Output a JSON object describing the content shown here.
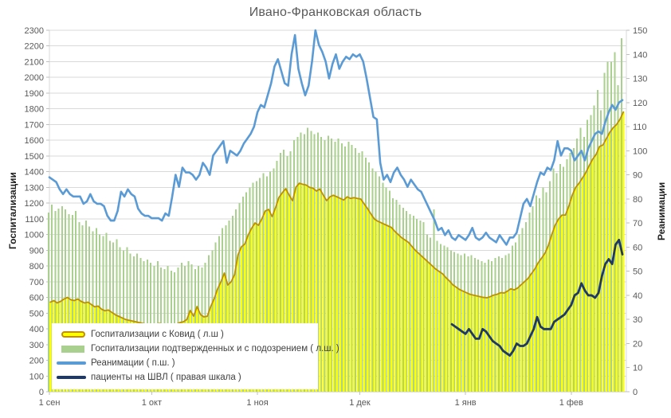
{
  "window": {
    "title": "Ивано-Франковская область"
  },
  "chart_data": {
    "type": "combo bar+line, dual axis",
    "title": "Ивано-Франковская область",
    "ylabel_left": "Госпитализации",
    "ylabel_right": "Реанимации",
    "grid": true,
    "legend_position": "bottom-left overlay",
    "left_axis": {
      "min": 0,
      "max": 2300,
      "step": 100
    },
    "right_axis": {
      "min": 0,
      "max": 150,
      "step": 10
    },
    "n_days": 169,
    "x_ticks": [
      {
        "label": "1 сен",
        "day": 0
      },
      {
        "label": "1 окт",
        "day": 30
      },
      {
        "label": "1 ноя",
        "day": 61
      },
      {
        "label": "1 дек",
        "day": 91
      },
      {
        "label": "1 янв",
        "day": 122
      },
      {
        "label": "1 фев",
        "day": 153
      }
    ],
    "colors": {
      "grid": "#D9D9D9",
      "axis": "#BFBFBF",
      "tick_text": "#595959",
      "title_text": "#595959"
    },
    "series": [
      {
        "name": "Госпитализации с Ковид ( л.ш )",
        "type": "bar",
        "axis": "left",
        "color": "#FFFF00",
        "border": "#BF8F00",
        "start_day": 0,
        "values": [
          570,
          580,
          565,
          575,
          590,
          600,
          585,
          580,
          590,
          575,
          565,
          570,
          555,
          540,
          545,
          525,
          515,
          520,
          505,
          490,
          480,
          470,
          460,
          455,
          450,
          445,
          440,
          435,
          430,
          432,
          430,
          428,
          435,
          425,
          420,
          430,
          425,
          430,
          440,
          445,
          460,
          517,
          481,
          542,
          491,
          476,
          480,
          542,
          590,
          653,
          700,
          755,
          679,
          700,
          745,
          871,
          922,
          940,
          998,
          1040,
          1074,
          1059,
          1100,
          1150,
          1160,
          1114,
          1170,
          1236,
          1266,
          1292,
          1251,
          1216,
          1302,
          1327,
          1320,
          1315,
          1300,
          1295,
          1277,
          1290,
          1251,
          1216,
          1241,
          1250,
          1240,
          1230,
          1220,
          1240,
          1230,
          1235,
          1230,
          1226,
          1195,
          1165,
          1130,
          1099,
          1085,
          1075,
          1065,
          1055,
          1045,
          1020,
          1000,
          980,
          965,
          950,
          925,
          900,
          880,
          860,
          840,
          820,
          800,
          780,
          765,
          750,
          725,
          705,
          680,
          665,
          650,
          640,
          630,
          620,
          615,
          610,
          605,
          600,
          598,
          605,
          615,
          620,
          630,
          628,
          640,
          655,
          648,
          660,
          680,
          700,
          720,
          750,
          780,
          820,
          850,
          881,
          930,
          1000,
          1060,
          1099,
          1124,
          1124,
          1180,
          1250,
          1300,
          1327,
          1360,
          1395,
          1440,
          1480,
          1510,
          1560,
          1570,
          1610,
          1650,
          1680,
          1700,
          1733,
          1780
        ]
      },
      {
        "name": "Госпитализации подтвержденных и с подозрением ( л.ш. )",
        "type": "bar",
        "axis": "left",
        "color": "#A9D08E",
        "start_day": 0,
        "values": [
          1140,
          1190,
          1150,
          1165,
          1180,
          1160,
          1130,
          1125,
          1150,
          1080,
          1060,
          1090,
          1050,
          1020,
          1040,
          1000,
          990,
          1010,
          960,
          950,
          970,
          920,
          900,
          920,
          880,
          860,
          880,
          850,
          830,
          840,
          820,
          800,
          830,
          790,
          780,
          800,
          770,
          760,
          790,
          820,
          800,
          830,
          810,
          780,
          800,
          790,
          820,
          870,
          900,
          950,
          990,
          1040,
          1060,
          1090,
          1120,
          1160,
          1200,
          1240,
          1270,
          1300,
          1330,
          1340,
          1360,
          1390,
          1370,
          1400,
          1420,
          1470,
          1520,
          1540,
          1500,
          1530,
          1600,
          1620,
          1650,
          1640,
          1680,
          1660,
          1640,
          1650,
          1620,
          1600,
          1630,
          1610,
          1590,
          1610,
          1580,
          1560,
          1590,
          1570,
          1550,
          1520,
          1530,
          1490,
          1460,
          1420,
          1400,
          1370,
          1330,
          1300,
          1280,
          1230,
          1220,
          1190,
          1170,
          1150,
          1130,
          1120,
          1100,
          1090,
          1080,
          1000,
          980,
          1160,
          960,
          940,
          930,
          920,
          900,
          890,
          880,
          870,
          880,
          860,
          870,
          850,
          840,
          830,
          820,
          840,
          830,
          850,
          860,
          850,
          870,
          880,
          930,
          950,
          1000,
          1040,
          1080,
          1140,
          1180,
          1250,
          1230,
          1300,
          1270,
          1340,
          1420,
          1390,
          1450,
          1430,
          1480,
          1520,
          1550,
          1610,
          1680,
          1620,
          1730,
          1760,
          1820,
          1920,
          1790,
          2030,
          2100,
          2100,
          2160,
          1950,
          2250
        ]
      },
      {
        "name": "Реанимации ( п.ш. )",
        "type": "line",
        "axis": "right",
        "color": "#5B9BD5",
        "start_day": 0,
        "values": [
          89,
          88,
          87,
          84,
          82,
          84,
          82,
          81,
          81,
          81,
          78,
          79,
          82,
          79,
          78,
          78,
          77,
          73,
          71,
          71,
          75,
          83,
          81,
          84,
          82,
          81,
          76,
          74,
          73,
          73,
          72,
          72,
          72,
          71,
          74,
          73,
          81,
          90,
          85,
          93,
          91,
          91,
          90,
          88,
          90,
          95,
          93,
          90,
          98,
          100,
          102,
          104,
          95,
          100,
          99,
          98,
          100,
          103,
          105,
          107,
          110,
          116,
          119,
          118,
          123,
          128,
          135,
          138,
          133,
          128,
          127,
          140,
          148,
          134,
          128,
          123,
          127,
          137,
          150,
          144,
          141,
          137,
          130,
          136,
          140,
          134,
          137,
          139,
          138,
          140,
          139,
          140,
          137,
          130,
          122,
          114,
          113,
          95,
          88,
          90,
          87,
          91,
          93,
          90,
          88,
          85,
          88,
          86,
          84,
          83,
          80,
          77,
          74,
          71,
          67,
          68,
          65,
          67,
          64,
          63,
          65,
          64,
          63,
          65,
          68,
          64,
          63,
          64,
          66,
          64,
          63,
          62,
          65,
          63,
          61,
          64,
          64,
          66,
          72,
          78,
          80,
          77,
          82,
          87,
          91,
          90,
          93,
          92,
          96,
          104,
          98,
          101,
          101,
          100,
          96,
          98,
          100,
          96,
          101,
          104,
          107,
          108,
          107,
          112,
          116,
          119,
          117,
          120,
          121
        ]
      },
      {
        "name": "пациенты на ШВЛ ( правая шкала )",
        "type": "line",
        "axis": "right",
        "color": "#1F3864",
        "start_day": 118,
        "values": [
          28,
          27,
          26,
          25,
          24,
          26,
          24,
          22,
          22,
          26,
          25,
          23,
          21,
          20,
          19,
          17,
          16,
          15,
          17,
          20,
          19,
          19,
          20,
          23,
          26,
          31,
          27,
          26,
          26,
          26,
          29,
          30,
          31,
          32,
          34,
          36,
          40,
          41,
          45,
          42,
          40,
          40,
          39,
          41,
          48,
          53,
          55,
          53,
          61,
          63,
          57
        ]
      }
    ]
  }
}
